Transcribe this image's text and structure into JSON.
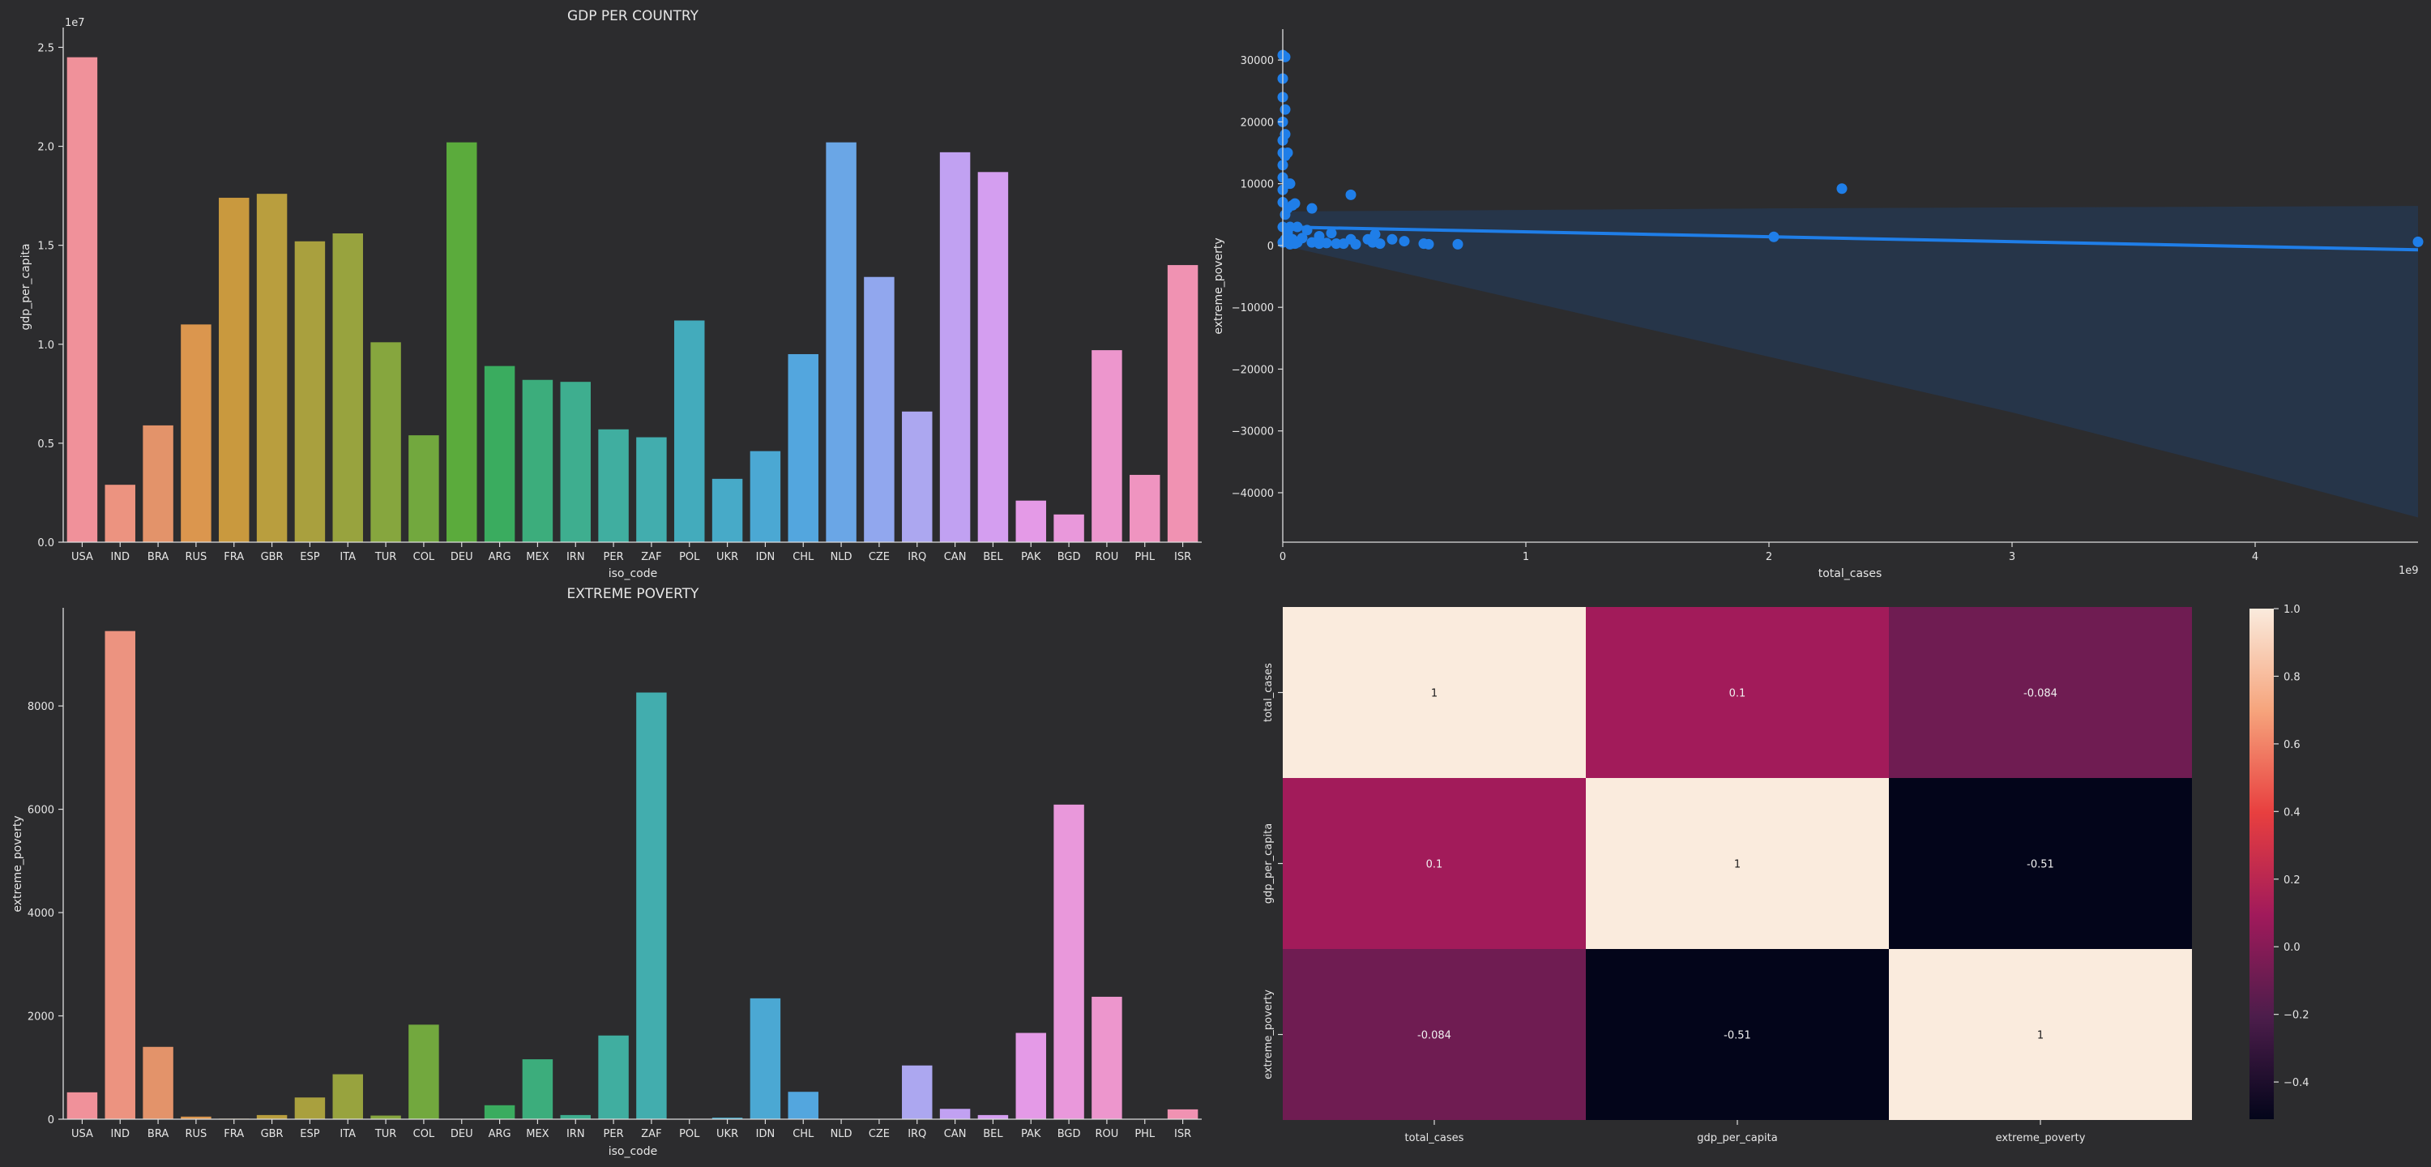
{
  "colors": {
    "background": "#2c2c2e",
    "axis": "#dddddd",
    "text": "#e6e6e6",
    "scatter": "#1f7ee8",
    "band": "#26364b"
  },
  "chart_data": [
    {
      "id": "gdp",
      "type": "bar",
      "title": "GDP PER COUNTRY",
      "xlabel": "iso_code",
      "ylabel": "gdp_per_capita",
      "offset_label": "1e7",
      "ylim": [
        0,
        2.6
      ],
      "yticks": [
        0,
        0.5,
        1.0,
        1.5,
        2.0,
        2.5
      ],
      "ytick_labels": [
        "0.0",
        "0.5",
        "1.0",
        "1.5",
        "2.0",
        "2.5"
      ],
      "categories": [
        "USA",
        "IND",
        "BRA",
        "RUS",
        "FRA",
        "GBR",
        "ESP",
        "ITA",
        "TUR",
        "COL",
        "DEU",
        "ARG",
        "MEX",
        "IRN",
        "PER",
        "ZAF",
        "POL",
        "UKR",
        "IDN",
        "CHL",
        "NLD",
        "CZE",
        "IRQ",
        "CAN",
        "BEL",
        "PAK",
        "BGD",
        "ROU",
        "PHL",
        "ISR"
      ],
      "values": [
        2.45,
        0.29,
        0.59,
        1.1,
        1.74,
        1.76,
        1.52,
        1.56,
        1.01,
        0.54,
        2.02,
        0.89,
        0.82,
        0.81,
        0.57,
        0.53,
        1.12,
        0.32,
        0.46,
        0.95,
        2.02,
        1.34,
        0.66,
        1.97,
        1.87,
        0.21,
        0.14,
        0.97,
        0.34,
        1.4
      ],
      "colors": [
        "#f0919a",
        "#ec9380",
        "#e3936a",
        "#db964e",
        "#c9993e",
        "#b99e3e",
        "#a9a03e",
        "#98a33e",
        "#86a63e",
        "#72a83e",
        "#5bab3c",
        "#3aac5f",
        "#3cad7c",
        "#3eae8f",
        "#40aea0",
        "#42adae",
        "#43abbc",
        "#47aac8",
        "#4ba8d3",
        "#53a6de",
        "#6aa6e6",
        "#91a7ee",
        "#aca7f0",
        "#c1a1f2",
        "#d49ef0",
        "#e49ae7",
        "#e998db",
        "#ed96cd",
        "#ef94c0",
        "#f092b2"
      ]
    },
    {
      "id": "poverty",
      "type": "bar",
      "title": "EXTREME POVERTY",
      "xlabel": "iso_code",
      "ylabel": "extreme_poverty",
      "ylim": [
        0,
        9900
      ],
      "yticks": [
        0,
        2000,
        4000,
        6000,
        8000
      ],
      "ytick_labels": [
        "0",
        "2000",
        "4000",
        "6000",
        "8000"
      ],
      "categories": [
        "USA",
        "IND",
        "BRA",
        "RUS",
        "FRA",
        "GBR",
        "ESP",
        "ITA",
        "TUR",
        "COL",
        "DEU",
        "ARG",
        "MEX",
        "IRN",
        "PER",
        "ZAF",
        "POL",
        "UKR",
        "IDN",
        "CHL",
        "NLD",
        "CZE",
        "IRQ",
        "CAN",
        "BEL",
        "PAK",
        "BGD",
        "ROU",
        "PHL",
        "ISR"
      ],
      "values": [
        520,
        9450,
        1400,
        50,
        10,
        80,
        420,
        870,
        70,
        1830,
        0,
        270,
        1160,
        80,
        1620,
        8260,
        0,
        30,
        2340,
        530,
        0,
        0,
        1040,
        200,
        80,
        1670,
        6090,
        2370,
        0,
        190
      ],
      "colors": [
        "#f0919a",
        "#ec9380",
        "#e3936a",
        "#db964e",
        "#c9993e",
        "#b99e3e",
        "#a9a03e",
        "#98a33e",
        "#86a63e",
        "#72a83e",
        "#5bab3c",
        "#3aac5f",
        "#3cad7c",
        "#3eae8f",
        "#40aea0",
        "#42adae",
        "#43abbc",
        "#47aac8",
        "#4ba8d3",
        "#53a6de",
        "#6aa6e6",
        "#91a7ee",
        "#aca7f0",
        "#c1a1f2",
        "#d49ef0",
        "#e49ae7",
        "#e998db",
        "#ed96cd",
        "#ef94c0",
        "#f092b2"
      ]
    },
    {
      "id": "scatter",
      "type": "scatter",
      "xlabel": "total_cases",
      "ylabel": "extreme_poverty",
      "offset_label": "1e9",
      "xlim": [
        0,
        4.67
      ],
      "ylim": [
        -48000,
        35000
      ],
      "xticks": [
        0,
        1,
        2,
        3,
        4
      ],
      "xtick_labels": [
        "0",
        "1",
        "2",
        "3",
        "4"
      ],
      "yticks": [
        -40000,
        -30000,
        -20000,
        -10000,
        0,
        10000,
        20000,
        30000
      ],
      "ytick_labels": [
        "−40000",
        "−30000",
        "−20000",
        "−10000",
        "0",
        "10000",
        "20000",
        "30000"
      ],
      "x": [
        0,
        0,
        0,
        0,
        0,
        0,
        0,
        0,
        0,
        0,
        0,
        0,
        0.01,
        0.01,
        0.01,
        0.01,
        0.01,
        0.01,
        0.02,
        0.02,
        0.02,
        0.02,
        0.03,
        0.03,
        0.03,
        0.04,
        0.04,
        0.05,
        0.05,
        0.06,
        0.06,
        0.08,
        0.1,
        0.12,
        0.12,
        0.15,
        0.15,
        0.18,
        0.2,
        0.22,
        0.25,
        0.28,
        0.28,
        0.3,
        0.35,
        0.37,
        0.38,
        0.4,
        0.45,
        0.5,
        0.58,
        0.6,
        0.72,
        2.02,
        2.3,
        4.67
      ],
      "y": [
        30800,
        27000,
        24000,
        20000,
        17000,
        15000,
        13000,
        11000,
        9000,
        7000,
        3000,
        500,
        30500,
        22000,
        18000,
        14500,
        5000,
        1000,
        15000,
        10000,
        6000,
        2000,
        10000,
        3000,
        200,
        6500,
        1000,
        6800,
        300,
        3000,
        500,
        1200,
        2500,
        500,
        6000,
        300,
        1500,
        400,
        2000,
        300,
        300,
        8200,
        1000,
        200,
        1000,
        500,
        1800,
        300,
        1000,
        700,
        300,
        200,
        200,
        1400,
        9200,
        600
      ],
      "regression": {
        "x": [
          0,
          4.67
        ],
        "y": [
          3000,
          -700
        ]
      },
      "band_lower": {
        "x": [
          0,
          1,
          2,
          3,
          4,
          4.67
        ],
        "y": [
          0,
          -9000,
          -18000,
          -27000,
          -37000,
          -44000
        ]
      },
      "band_upper": {
        "x": [
          0,
          2,
          4.67
        ],
        "y": [
          5500,
          6000,
          6400
        ]
      }
    },
    {
      "id": "heatmap",
      "type": "heatmap",
      "rows": [
        "total_cases",
        "gdp_per_capita",
        "extreme_poverty"
      ],
      "cols": [
        "total_cases",
        "gdp_per_capita",
        "extreme_poverty"
      ],
      "matrix": [
        [
          1,
          0.1,
          -0.084
        ],
        [
          0.1,
          1,
          -0.51
        ],
        [
          -0.084,
          -0.51,
          1
        ]
      ],
      "labels": [
        [
          "1",
          "0.1",
          "-0.084"
        ],
        [
          "0.1",
          "1",
          "-0.51"
        ],
        [
          "-0.084",
          "-0.51",
          "1"
        ]
      ],
      "vmin": -0.51,
      "vmax": 1.0,
      "colorbar_ticks": [
        1.0,
        0.8,
        0.6,
        0.4,
        0.2,
        0.0,
        -0.2,
        -0.4
      ],
      "colorbar_tick_labels": [
        "1.0",
        "0.8",
        "0.6",
        "0.4",
        "0.2",
        "0.0",
        "−0.2",
        "−0.4"
      ]
    }
  ]
}
